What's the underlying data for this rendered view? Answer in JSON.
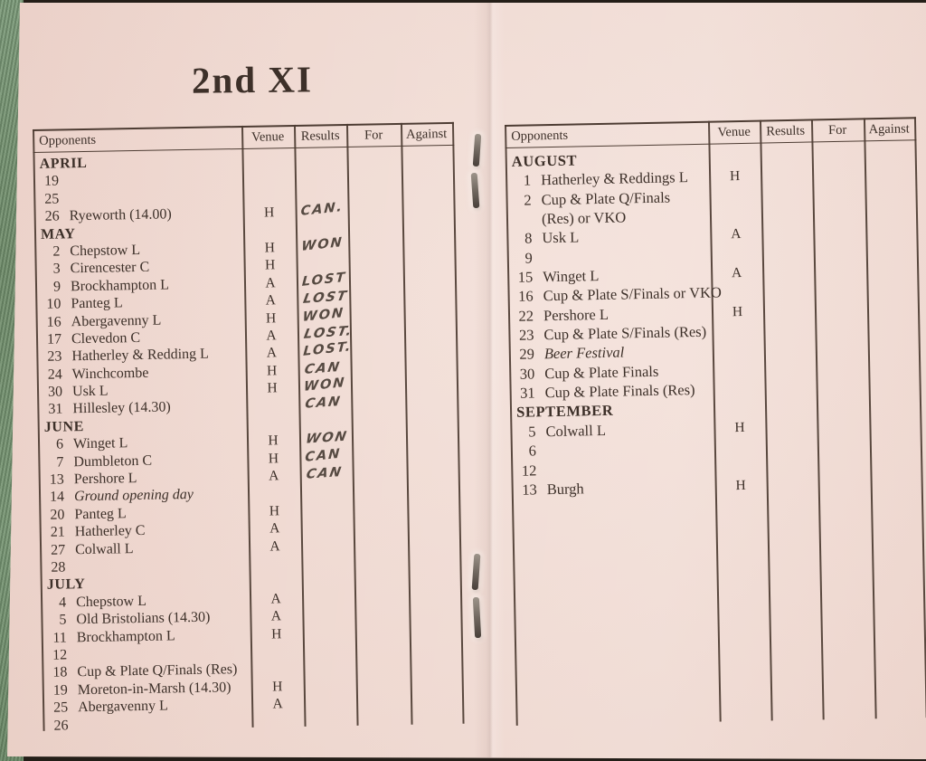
{
  "title": "2nd XI",
  "columns": [
    "Opponents",
    "Venue",
    "Results",
    "For",
    "Against"
  ],
  "left_table": {
    "rows": [
      {
        "month": "APRIL"
      },
      {
        "day": "19"
      },
      {
        "day": "25"
      },
      {
        "day": "26",
        "opponent": "Ryeworth (14.00)",
        "venue": "H",
        "result": "CAN."
      },
      {
        "month": "MAY"
      },
      {
        "day": "2",
        "opponent": "Chepstow L",
        "venue": "H",
        "result": "WON"
      },
      {
        "day": "3",
        "opponent": "Cirencester C",
        "venue": "H"
      },
      {
        "day": "9",
        "opponent": "Brockhampton L",
        "venue": "A",
        "result": "LOST"
      },
      {
        "day": "10",
        "opponent": "Panteg L",
        "venue": "A",
        "result": "LOST"
      },
      {
        "day": "16",
        "opponent": "Abergavenny L",
        "venue": "H",
        "result": "WON"
      },
      {
        "day": "17",
        "opponent": "Clevedon C",
        "venue": "A",
        "result": "LOST."
      },
      {
        "day": "23",
        "opponent": "Hatherley & Redding L",
        "venue": "A",
        "result": "LOST."
      },
      {
        "day": "24",
        "opponent": "Winchcombe",
        "venue": "H",
        "result": "CAN"
      },
      {
        "day": "30",
        "opponent": "Usk L",
        "venue": "H",
        "result": "WON"
      },
      {
        "day": "31",
        "opponent": "Hillesley (14.30)",
        "result": "CAN"
      },
      {
        "month": "JUNE"
      },
      {
        "day": "6",
        "opponent": "Winget L",
        "venue": "H",
        "result": "WON"
      },
      {
        "day": "7",
        "opponent": "Dumbleton C",
        "venue": "H",
        "result": "CAN"
      },
      {
        "day": "13",
        "opponent": "Pershore L",
        "venue": "A",
        "result": "CAN"
      },
      {
        "day": "14",
        "opponent": "Ground opening day",
        "italic": true
      },
      {
        "day": "20",
        "opponent": "Panteg L",
        "venue": "H"
      },
      {
        "day": "21",
        "opponent": "Hatherley C",
        "venue": "A"
      },
      {
        "day": "27",
        "opponent": "Colwall L",
        "venue": "A"
      },
      {
        "day": "28"
      },
      {
        "month": "JULY"
      },
      {
        "day": "4",
        "opponent": "Chepstow L",
        "venue": "A"
      },
      {
        "day": "5",
        "opponent": "Old Bristolians (14.30)",
        "venue": "A"
      },
      {
        "day": "11",
        "opponent": "Brockhampton L",
        "venue": "H"
      },
      {
        "day": "12"
      },
      {
        "day": "18",
        "opponent": "Cup & Plate Q/Finals (Res)"
      },
      {
        "day": "19",
        "opponent": "Moreton-in-Marsh (14.30)",
        "venue": "H"
      },
      {
        "day": "25",
        "opponent": "Abergavenny L",
        "venue": "A"
      },
      {
        "day": "26"
      }
    ]
  },
  "right_table": {
    "rows": [
      {
        "month": "AUGUST"
      },
      {
        "day": "1",
        "opponent": "Hatherley & Reddings L",
        "venue": "H"
      },
      {
        "day": "2",
        "opponent": "Cup & Plate Q/Finals"
      },
      {
        "opponent": "(Res) or VKO"
      },
      {
        "day": "8",
        "opponent": "Usk L",
        "venue": "A"
      },
      {
        "day": "9"
      },
      {
        "day": "15",
        "opponent": "Winget L",
        "venue": "A"
      },
      {
        "day": "16",
        "opponent": "Cup & Plate S/Finals or VKO"
      },
      {
        "day": "22",
        "opponent": "Pershore L",
        "venue": "H"
      },
      {
        "day": "23",
        "opponent": "Cup & Plate S/Finals (Res)"
      },
      {
        "day": "29",
        "opponent": "Beer Festival",
        "italic": true
      },
      {
        "day": "30",
        "opponent": "Cup & Plate Finals"
      },
      {
        "day": "31",
        "opponent": "Cup & Plate Finals (Res)"
      },
      {
        "month": "SEPTEMBER"
      },
      {
        "day": "5",
        "opponent": "Colwall L",
        "venue": "H"
      },
      {
        "day": "6"
      },
      {
        "day": "12"
      },
      {
        "day": "13",
        "opponent": "Burgh",
        "venue": "H"
      }
    ]
  },
  "icons": [
    "staple-icon"
  ],
  "colors": {
    "paper": "#eed7cf",
    "ink": "#3d3029",
    "line": "#4d3c33",
    "hand": "#564a42",
    "cover": "#7c9979"
  }
}
